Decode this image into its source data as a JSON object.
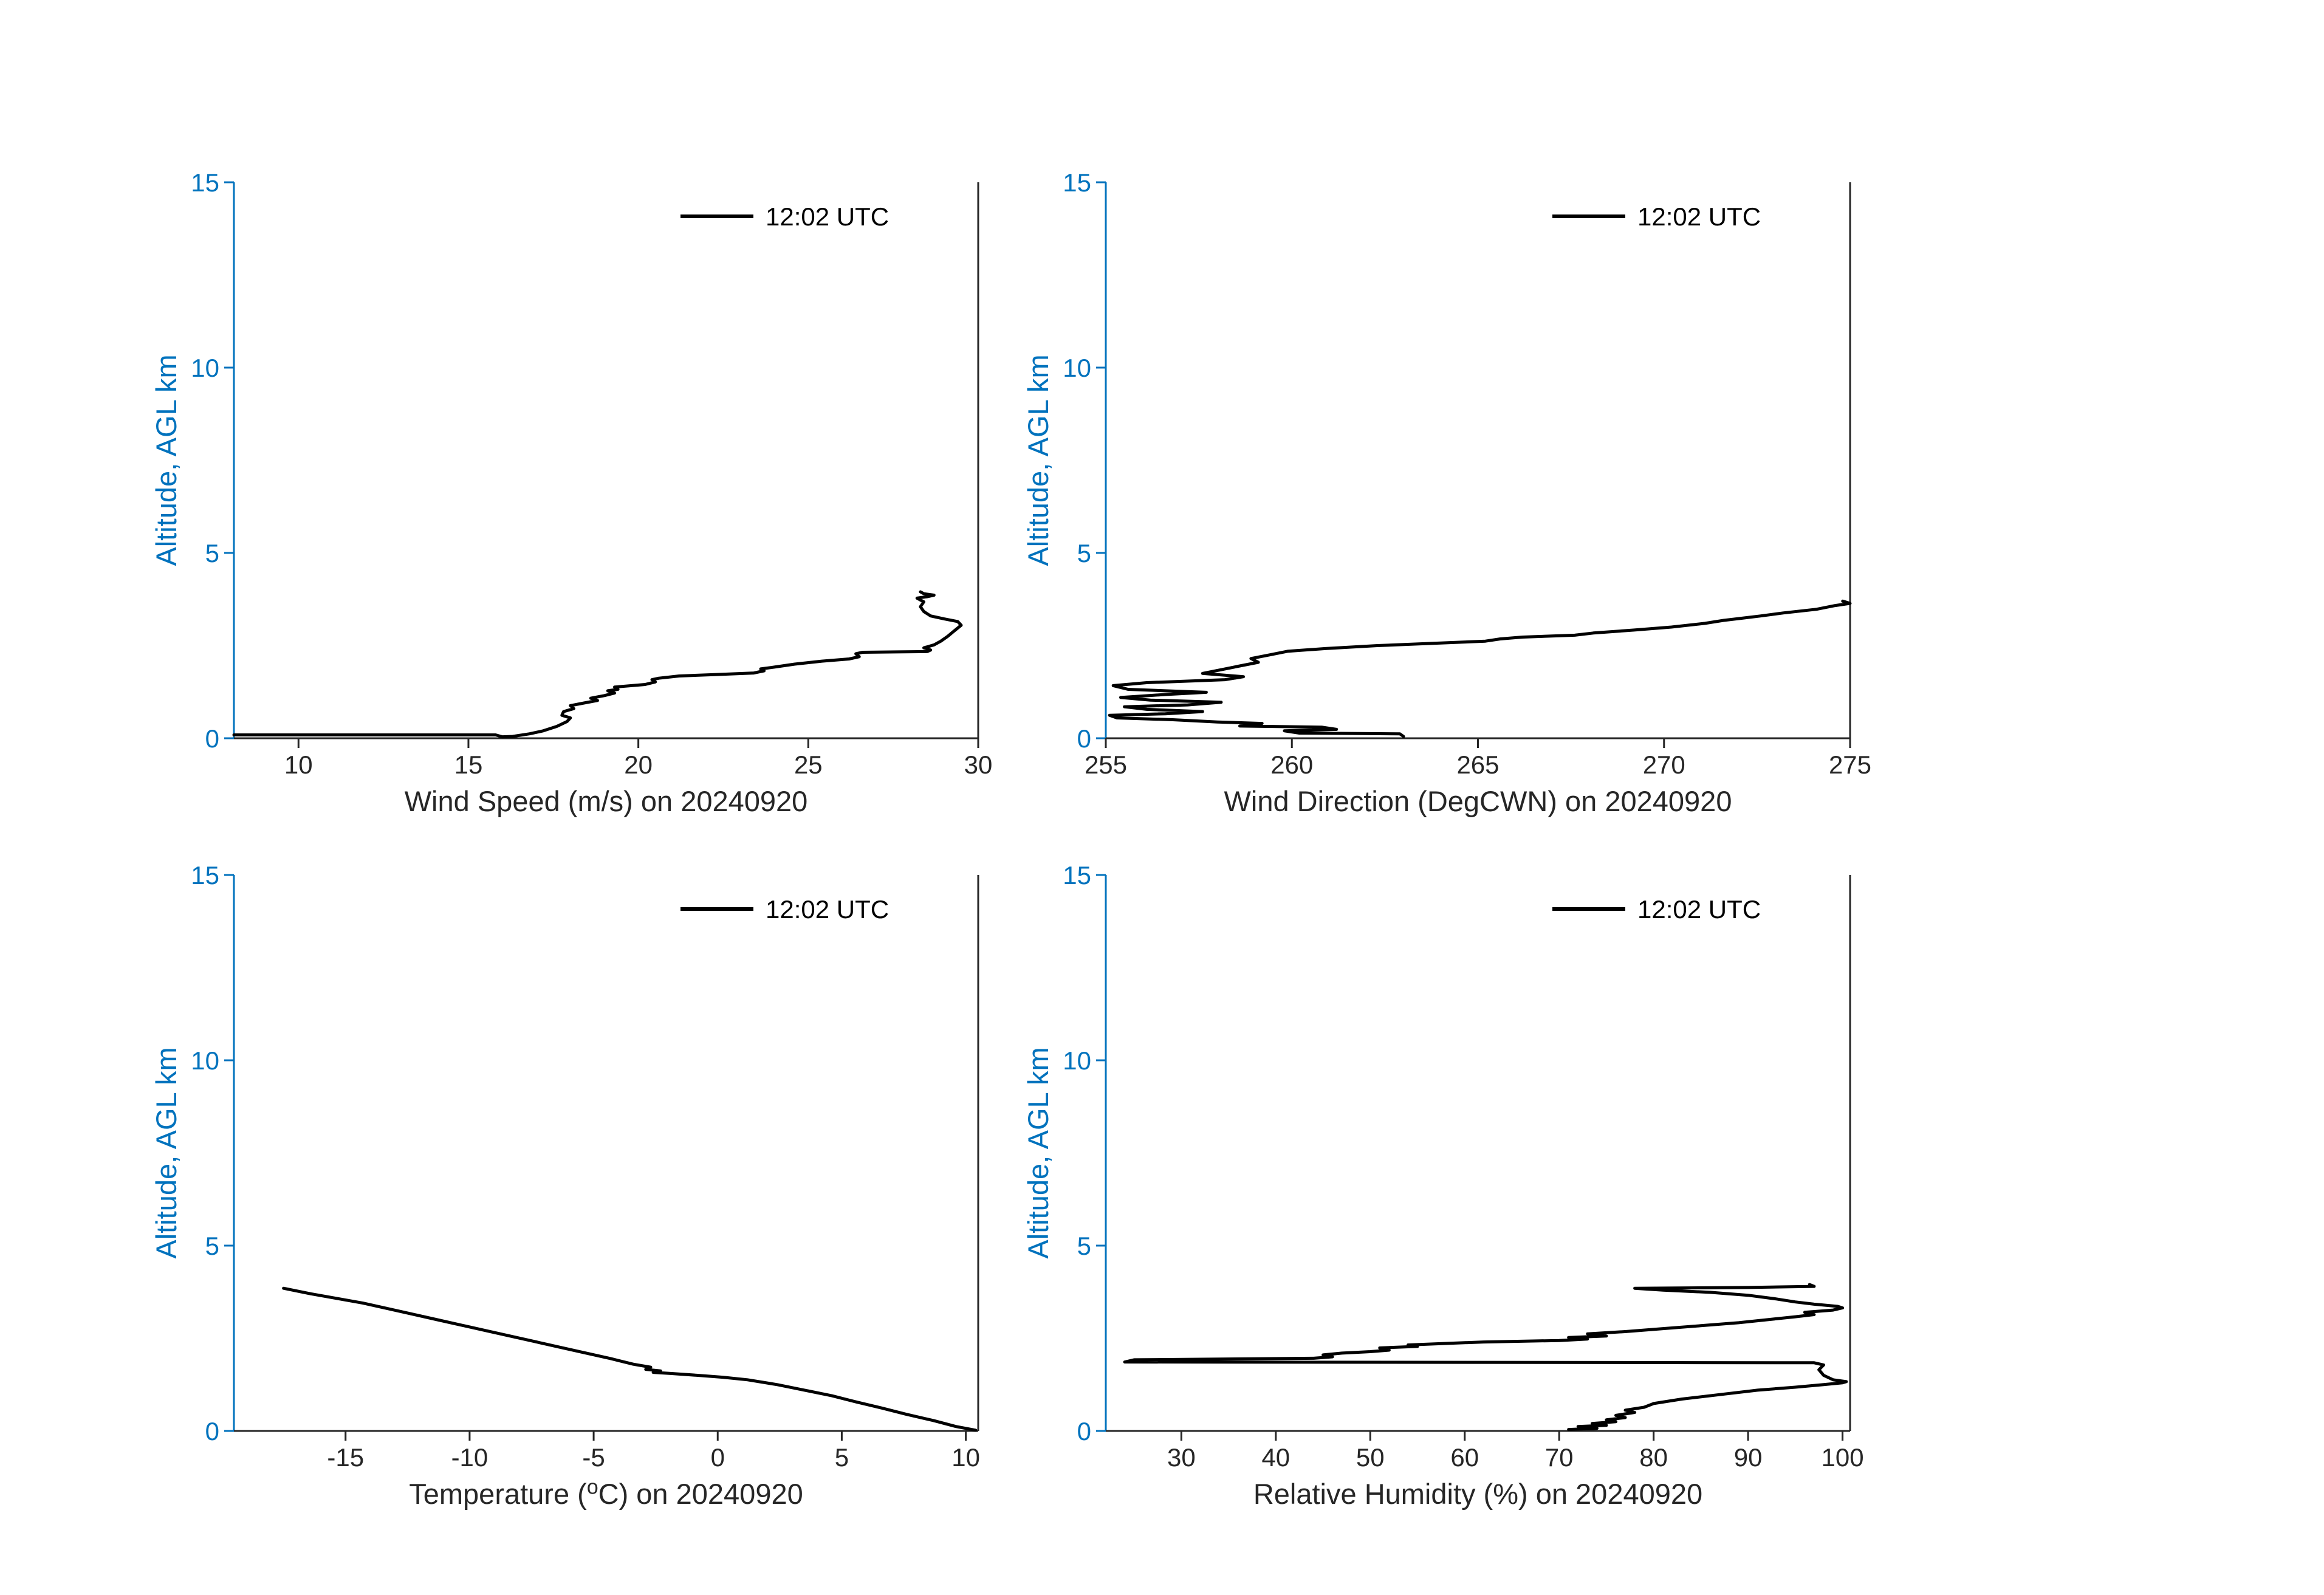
{
  "figure": {
    "background": "#ffffff"
  },
  "colors": {
    "y_axis": "#0072BD",
    "x_axis": "#262626",
    "series_line": "#000000",
    "legend_text": "#000000"
  },
  "chart_data": [
    {
      "id": "wind-speed",
      "type": "line",
      "xlabel": "Wind Speed (m/s) on 20240920",
      "ylabel": "Altitude, AGL km",
      "xlim": [
        8.1,
        30
      ],
      "ylim": [
        0,
        15
      ],
      "xticks": [
        10,
        15,
        20,
        25,
        30
      ],
      "yticks": [
        0,
        5,
        10,
        15
      ],
      "legend": [
        {
          "label": "12:02 UTC"
        }
      ],
      "series": [
        {
          "name": "12:02 UTC",
          "points": [
            [
              8.1,
              0.09
            ],
            [
              12.0,
              0.09
            ],
            [
              15.8,
              0.09
            ],
            [
              16.0,
              0.04
            ],
            [
              16.3,
              0.05
            ],
            [
              16.8,
              0.12
            ],
            [
              17.2,
              0.2
            ],
            [
              17.6,
              0.32
            ],
            [
              17.9,
              0.45
            ],
            [
              18.0,
              0.55
            ],
            [
              17.75,
              0.62
            ],
            [
              17.8,
              0.72
            ],
            [
              18.1,
              0.8
            ],
            [
              18.0,
              0.88
            ],
            [
              18.4,
              0.95
            ],
            [
              18.8,
              1.02
            ],
            [
              18.6,
              1.08
            ],
            [
              19.0,
              1.15
            ],
            [
              19.3,
              1.22
            ],
            [
              19.1,
              1.28
            ],
            [
              19.4,
              1.32
            ],
            [
              19.3,
              1.38
            ],
            [
              20.2,
              1.45
            ],
            [
              20.5,
              1.52
            ],
            [
              20.4,
              1.58
            ],
            [
              20.6,
              1.62
            ],
            [
              21.2,
              1.68
            ],
            [
              22.3,
              1.72
            ],
            [
              23.4,
              1.76
            ],
            [
              23.7,
              1.82
            ],
            [
              23.6,
              1.87
            ],
            [
              24.0,
              1.92
            ],
            [
              24.6,
              2.0
            ],
            [
              25.4,
              2.08
            ],
            [
              26.2,
              2.14
            ],
            [
              26.5,
              2.2
            ],
            [
              26.4,
              2.28
            ],
            [
              26.6,
              2.32
            ],
            [
              27.6,
              2.33
            ],
            [
              28.5,
              2.34
            ],
            [
              28.6,
              2.38
            ],
            [
              28.4,
              2.44
            ],
            [
              28.7,
              2.52
            ],
            [
              28.9,
              2.62
            ],
            [
              29.1,
              2.75
            ],
            [
              29.3,
              2.9
            ],
            [
              29.5,
              3.05
            ],
            [
              29.4,
              3.15
            ],
            [
              29.0,
              3.22
            ],
            [
              28.6,
              3.3
            ],
            [
              28.4,
              3.42
            ],
            [
              28.3,
              3.55
            ],
            [
              28.4,
              3.68
            ],
            [
              28.2,
              3.78
            ],
            [
              28.5,
              3.82
            ],
            [
              28.7,
              3.86
            ],
            [
              28.4,
              3.9
            ],
            [
              28.3,
              3.95
            ]
          ]
        }
      ]
    },
    {
      "id": "wind-direction",
      "type": "line",
      "xlabel": "Wind Direction (DegCWN) on 20240920",
      "ylabel": "Altitude, AGL km",
      "xlim": [
        255,
        275
      ],
      "ylim": [
        0,
        15
      ],
      "xticks": [
        255,
        260,
        265,
        270,
        275
      ],
      "yticks": [
        0,
        5,
        10,
        15
      ],
      "legend": [
        {
          "label": "12:02 UTC"
        }
      ],
      "series": [
        {
          "name": "12:02 UTC",
          "points": [
            [
              263.0,
              0.05
            ],
            [
              262.9,
              0.12
            ],
            [
              260.2,
              0.14
            ],
            [
              259.8,
              0.2
            ],
            [
              261.2,
              0.24
            ],
            [
              260.8,
              0.3
            ],
            [
              258.6,
              0.33
            ],
            [
              259.2,
              0.4
            ],
            [
              258.0,
              0.44
            ],
            [
              256.8,
              0.5
            ],
            [
              255.3,
              0.55
            ],
            [
              255.1,
              0.62
            ],
            [
              256.6,
              0.66
            ],
            [
              257.6,
              0.72
            ],
            [
              256.1,
              0.78
            ],
            [
              255.5,
              0.85
            ],
            [
              257.2,
              0.9
            ],
            [
              258.1,
              0.97
            ],
            [
              256.2,
              1.03
            ],
            [
              255.4,
              1.1
            ],
            [
              256.6,
              1.18
            ],
            [
              257.7,
              1.24
            ],
            [
              255.6,
              1.32
            ],
            [
              255.2,
              1.42
            ],
            [
              256.1,
              1.5
            ],
            [
              258.2,
              1.58
            ],
            [
              258.7,
              1.66
            ],
            [
              257.6,
              1.75
            ],
            [
              258.1,
              1.85
            ],
            [
              258.6,
              1.95
            ],
            [
              259.1,
              2.05
            ],
            [
              258.9,
              2.15
            ],
            [
              259.4,
              2.25
            ],
            [
              259.9,
              2.35
            ],
            [
              260.9,
              2.42
            ],
            [
              262.3,
              2.5
            ],
            [
              263.8,
              2.56
            ],
            [
              265.2,
              2.62
            ],
            [
              265.6,
              2.68
            ],
            [
              266.2,
              2.73
            ],
            [
              267.6,
              2.78
            ],
            [
              268.1,
              2.84
            ],
            [
              269.2,
              2.92
            ],
            [
              270.2,
              3.0
            ],
            [
              271.1,
              3.1
            ],
            [
              271.6,
              3.18
            ],
            [
              272.1,
              3.24
            ],
            [
              272.6,
              3.3
            ],
            [
              273.2,
              3.38
            ],
            [
              274.1,
              3.48
            ],
            [
              274.6,
              3.58
            ],
            [
              275.0,
              3.64
            ],
            [
              274.8,
              3.7
            ]
          ]
        }
      ]
    },
    {
      "id": "temperature",
      "type": "line",
      "xlabel": "Temperature (^oC) on 20240920",
      "ylabel": "Altitude, AGL km",
      "xlim": [
        -19.5,
        10.5
      ],
      "ylim": [
        0,
        15
      ],
      "xticks": [
        -15,
        -10,
        -5,
        0,
        5,
        10
      ],
      "yticks": [
        0,
        5,
        10,
        15
      ],
      "legend": [
        {
          "label": "12:02 UTC"
        }
      ],
      "series": [
        {
          "name": "12:02 UTC",
          "points": [
            [
              10.4,
              0.02
            ],
            [
              9.6,
              0.12
            ],
            [
              8.7,
              0.28
            ],
            [
              7.6,
              0.45
            ],
            [
              6.6,
              0.62
            ],
            [
              5.6,
              0.78
            ],
            [
              4.6,
              0.95
            ],
            [
              3.5,
              1.1
            ],
            [
              2.4,
              1.25
            ],
            [
              1.2,
              1.38
            ],
            [
              0.2,
              1.45
            ],
            [
              -0.8,
              1.5
            ],
            [
              -1.9,
              1.55
            ],
            [
              -2.6,
              1.58
            ],
            [
              -2.3,
              1.62
            ],
            [
              -2.9,
              1.66
            ],
            [
              -2.7,
              1.72
            ],
            [
              -3.4,
              1.8
            ],
            [
              -4.3,
              1.95
            ],
            [
              -5.3,
              2.1
            ],
            [
              -6.3,
              2.25
            ],
            [
              -7.3,
              2.4
            ],
            [
              -8.3,
              2.55
            ],
            [
              -9.3,
              2.7
            ],
            [
              -10.3,
              2.85
            ],
            [
              -11.3,
              3.0
            ],
            [
              -12.3,
              3.15
            ],
            [
              -13.3,
              3.3
            ],
            [
              -14.3,
              3.45
            ],
            [
              -15.4,
              3.58
            ],
            [
              -16.4,
              3.7
            ],
            [
              -17.5,
              3.85
            ]
          ]
        }
      ]
    },
    {
      "id": "relative-humidity",
      "type": "line",
      "xlabel": "Relative Humidity (%) on 20240920",
      "ylabel": "Altitude, AGL km",
      "xlim": [
        22,
        100.8
      ],
      "ylim": [
        0,
        15
      ],
      "xticks": [
        30,
        40,
        50,
        60,
        70,
        80,
        90,
        100
      ],
      "yticks": [
        0,
        5,
        10,
        15
      ],
      "legend": [
        {
          "label": "12:02 UTC"
        }
      ],
      "series": [
        {
          "name": "12:02 UTC",
          "points": [
            [
              71,
              0.04
            ],
            [
              74,
              0.07
            ],
            [
              72,
              0.12
            ],
            [
              75,
              0.15
            ],
            [
              73.5,
              0.2
            ],
            [
              76,
              0.25
            ],
            [
              75,
              0.3
            ],
            [
              77,
              0.36
            ],
            [
              76,
              0.42
            ],
            [
              78,
              0.5
            ],
            [
              77,
              0.56
            ],
            [
              79,
              0.64
            ],
            [
              80,
              0.74
            ],
            [
              83,
              0.86
            ],
            [
              87,
              0.98
            ],
            [
              91,
              1.1
            ],
            [
              95,
              1.18
            ],
            [
              98,
              1.25
            ],
            [
              100,
              1.3
            ],
            [
              100.4,
              1.33
            ],
            [
              99,
              1.38
            ],
            [
              98,
              1.5
            ],
            [
              97.5,
              1.65
            ],
            [
              98,
              1.78
            ],
            [
              97,
              1.84
            ],
            [
              24,
              1.86
            ],
            [
              25,
              1.92
            ],
            [
              44,
              1.96
            ],
            [
              46,
              2.0
            ],
            [
              45,
              2.05
            ],
            [
              47,
              2.1
            ],
            [
              50,
              2.14
            ],
            [
              52,
              2.18
            ],
            [
              51,
              2.24
            ],
            [
              55,
              2.28
            ],
            [
              54,
              2.32
            ],
            [
              58,
              2.36
            ],
            [
              62,
              2.4
            ],
            [
              70,
              2.44
            ],
            [
              73,
              2.48
            ],
            [
              71,
              2.52
            ],
            [
              75,
              2.56
            ],
            [
              73,
              2.62
            ],
            [
              77,
              2.68
            ],
            [
              81,
              2.76
            ],
            [
              85,
              2.84
            ],
            [
              89,
              2.92
            ],
            [
              92,
              3.0
            ],
            [
              95,
              3.08
            ],
            [
              97,
              3.14
            ],
            [
              96,
              3.2
            ],
            [
              99,
              3.26
            ],
            [
              100,
              3.32
            ],
            [
              99.5,
              3.36
            ],
            [
              97,
              3.42
            ],
            [
              95,
              3.48
            ],
            [
              93,
              3.56
            ],
            [
              90,
              3.66
            ],
            [
              86,
              3.74
            ],
            [
              81,
              3.8
            ],
            [
              78,
              3.85
            ],
            [
              90,
              3.87
            ],
            [
              97,
              3.9
            ],
            [
              96.5,
              3.95
            ]
          ]
        }
      ]
    }
  ]
}
